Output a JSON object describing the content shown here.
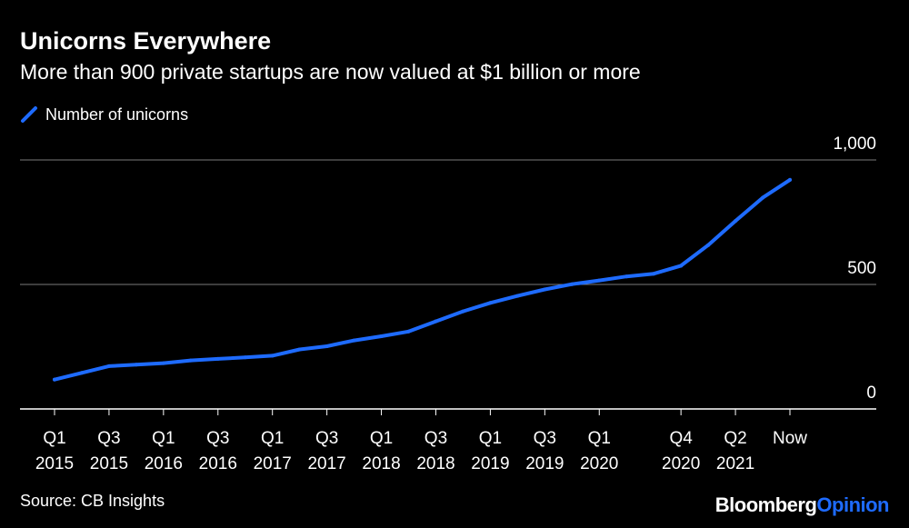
{
  "colors": {
    "background": "#000000",
    "series": "#1e6bff",
    "grid": "#7a7a7a",
    "text": "#ffffff",
    "logo_accent": "#1e6bff"
  },
  "header": {
    "title": "Unicorns Everywhere",
    "subtitle": "More than 900 private startups are now valued at $1 billion or more"
  },
  "legend": {
    "label": "Number of unicorns",
    "icon": "line-swatch-icon"
  },
  "footer": {
    "source": "Source: CB Insights",
    "logo_bloomberg": "Bloomberg",
    "logo_opinion": "Opinion"
  },
  "chart_data": {
    "type": "line",
    "title": "Unicorns Everywhere",
    "subtitle": "More than 900 private startups are now valued at $1 billion or more",
    "xlabel": "",
    "ylabel": "",
    "ylim": [
      0,
      1000
    ],
    "y_ticks": [
      "0",
      "500",
      "1,000"
    ],
    "y_tick_values": [
      0,
      500,
      1000
    ],
    "grid": true,
    "legend_position": "top-left",
    "x_ticks": [
      {
        "index": 0,
        "line1": "Q1",
        "line2": "2015"
      },
      {
        "index": 2,
        "line1": "Q3",
        "line2": "2015"
      },
      {
        "index": 4,
        "line1": "Q1",
        "line2": "2016"
      },
      {
        "index": 6,
        "line1": "Q3",
        "line2": "2016"
      },
      {
        "index": 8,
        "line1": "Q1",
        "line2": "2017"
      },
      {
        "index": 10,
        "line1": "Q3",
        "line2": "2017"
      },
      {
        "index": 12,
        "line1": "Q1",
        "line2": "2018"
      },
      {
        "index": 14,
        "line1": "Q3",
        "line2": "2018"
      },
      {
        "index": 16,
        "line1": "Q1",
        "line2": "2019"
      },
      {
        "index": 18,
        "line1": "Q3",
        "line2": "2019"
      },
      {
        "index": 20,
        "line1": "Q1",
        "line2": "2020"
      },
      {
        "index": 23,
        "line1": "Q4",
        "line2": "2020"
      },
      {
        "index": 25,
        "line1": "Q2",
        "line2": "2021"
      },
      {
        "index": 27,
        "line1": "Now",
        "line2": ""
      }
    ],
    "series": [
      {
        "name": "Number of unicorns",
        "x": [
          0,
          1,
          2,
          3,
          4,
          5,
          6,
          7,
          8,
          9,
          10,
          11,
          12,
          13,
          14,
          15,
          16,
          17,
          18,
          19,
          20,
          21,
          22,
          23,
          24,
          25,
          26,
          27
        ],
        "values": [
          118,
          145,
          172,
          178,
          184,
          195,
          201,
          207,
          214,
          239,
          252,
          275,
          292,
          311,
          352,
          392,
          426,
          454,
          480,
          501,
          516,
          532,
          543,
          575,
          658,
          755,
          848,
          920
        ]
      }
    ]
  }
}
